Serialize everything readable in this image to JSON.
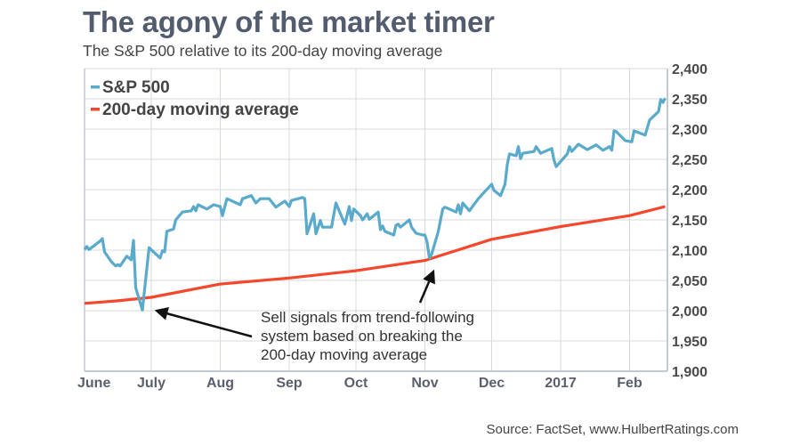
{
  "chart_data": {
    "type": "line",
    "title": "The agony of the market timer",
    "subtitle": "The S&P 500 relative to its 200-day moving average",
    "source": "Source: FactSet, www.HulbertRatings.com",
    "xlabel": "",
    "ylabel": "",
    "ylim": [
      1900,
      2400
    ],
    "yticks": [
      "2,400",
      "2,350",
      "2,300",
      "2,250",
      "2,200",
      "2,150",
      "2,100",
      "2,050",
      "2,000",
      "1,950",
      "1,900"
    ],
    "ytick_values": [
      2400,
      2350,
      2300,
      2250,
      2200,
      2150,
      2100,
      2050,
      2000,
      1950,
      1900
    ],
    "y_axis_side": "right",
    "xlim": [
      "2016-06-01",
      "2017-02-17"
    ],
    "xticks": [
      {
        "label": "June",
        "date": "2016-06-01"
      },
      {
        "label": "July",
        "date": "2016-07-01"
      },
      {
        "label": "Aug",
        "date": "2016-08-01"
      },
      {
        "label": "Sep",
        "date": "2016-09-01"
      },
      {
        "label": "Oct",
        "date": "2016-10-01"
      },
      {
        "label": "Nov",
        "date": "2016-11-01"
      },
      {
        "label": "Dec",
        "date": "2016-12-01"
      },
      {
        "label": "2017",
        "date": "2017-01-01"
      },
      {
        "label": "Feb",
        "date": "2017-02-01"
      }
    ],
    "grid": true,
    "legend_position": "top-left",
    "series": [
      {
        "name": "S&P 500",
        "color": "#5aaacb",
        "points": [
          [
            "2016-06-01",
            2101
          ],
          [
            "2016-06-02",
            2106
          ],
          [
            "2016-06-03",
            2101
          ],
          [
            "2016-06-08",
            2115
          ],
          [
            "2016-06-09",
            2119
          ],
          [
            "2016-06-10",
            2097
          ],
          [
            "2016-06-13",
            2081
          ],
          [
            "2016-06-15",
            2074
          ],
          [
            "2016-06-16",
            2076
          ],
          [
            "2016-06-17",
            2074
          ],
          [
            "2016-06-20",
            2090
          ],
          [
            "2016-06-22",
            2084
          ],
          [
            "2016-06-23",
            2116
          ],
          [
            "2016-06-24",
            2038
          ],
          [
            "2016-06-27",
            2001
          ],
          [
            "2016-06-30",
            2104
          ],
          [
            "2016-07-05",
            2087
          ],
          [
            "2016-07-06",
            2099
          ],
          [
            "2016-07-07",
            2097
          ],
          [
            "2016-07-08",
            2131
          ],
          [
            "2016-07-11",
            2135
          ],
          [
            "2016-07-12",
            2150
          ],
          [
            "2016-07-15",
            2163
          ],
          [
            "2016-07-19",
            2165
          ],
          [
            "2016-07-20",
            2172
          ],
          [
            "2016-07-21",
            2165
          ],
          [
            "2016-07-22",
            2175
          ],
          [
            "2016-07-26",
            2168
          ],
          [
            "2016-07-29",
            2175
          ],
          [
            "2016-08-01",
            2172
          ],
          [
            "2016-08-02",
            2157
          ],
          [
            "2016-08-04",
            2185
          ],
          [
            "2016-08-10",
            2175
          ],
          [
            "2016-08-11",
            2185
          ],
          [
            "2016-08-15",
            2190
          ],
          [
            "2016-08-17",
            2178
          ],
          [
            "2016-08-19",
            2185
          ],
          [
            "2016-08-23",
            2185
          ],
          [
            "2016-08-26",
            2171
          ],
          [
            "2016-08-30",
            2181
          ],
          [
            "2016-09-01",
            2172
          ],
          [
            "2016-09-02",
            2182
          ],
          [
            "2016-09-07",
            2187
          ],
          [
            "2016-09-08",
            2185
          ],
          [
            "2016-09-09",
            2127
          ],
          [
            "2016-09-12",
            2160
          ],
          [
            "2016-09-13",
            2127
          ],
          [
            "2016-09-15",
            2149
          ],
          [
            "2016-09-16",
            2138
          ],
          [
            "2016-09-20",
            2138
          ],
          [
            "2016-09-22",
            2178
          ],
          [
            "2016-09-26",
            2143
          ],
          [
            "2016-09-28",
            2172
          ],
          [
            "2016-09-29",
            2149
          ],
          [
            "2016-09-30",
            2168
          ],
          [
            "2016-10-03",
            2157
          ],
          [
            "2016-10-04",
            2150
          ],
          [
            "2016-10-06",
            2160
          ],
          [
            "2016-10-07",
            2151
          ],
          [
            "2016-10-10",
            2160
          ],
          [
            "2016-10-11",
            2163
          ],
          [
            "2016-10-12",
            2134
          ],
          [
            "2016-10-13",
            2140
          ],
          [
            "2016-10-14",
            2131
          ],
          [
            "2016-10-18",
            2125
          ],
          [
            "2016-10-19",
            2141
          ],
          [
            "2016-10-20",
            2143
          ],
          [
            "2016-10-21",
            2138
          ],
          [
            "2016-10-25",
            2150
          ],
          [
            "2016-10-26",
            2138
          ],
          [
            "2016-10-28",
            2128
          ],
          [
            "2016-10-31",
            2125
          ],
          [
            "2016-11-01",
            2125
          ],
          [
            "2016-11-02",
            2113
          ],
          [
            "2016-11-03",
            2087
          ],
          [
            "2016-11-04",
            2093
          ],
          [
            "2016-11-07",
            2131
          ],
          [
            "2016-11-09",
            2168
          ],
          [
            "2016-11-10",
            2171
          ],
          [
            "2016-11-15",
            2163
          ],
          [
            "2016-11-16",
            2175
          ],
          [
            "2016-11-17",
            2160
          ],
          [
            "2016-11-18",
            2178
          ],
          [
            "2016-11-21",
            2165
          ],
          [
            "2016-11-25",
            2185
          ],
          [
            "2016-11-29",
            2201
          ],
          [
            "2016-12-01",
            2209
          ],
          [
            "2016-12-02",
            2199
          ],
          [
            "2016-12-05",
            2190
          ],
          [
            "2016-12-07",
            2209
          ],
          [
            "2016-12-08",
            2241
          ],
          [
            "2016-12-09",
            2259
          ],
          [
            "2016-12-12",
            2256
          ],
          [
            "2016-12-13",
            2271
          ],
          [
            "2016-12-14",
            2251
          ],
          [
            "2016-12-15",
            2260
          ],
          [
            "2016-12-20",
            2263
          ],
          [
            "2016-12-21",
            2271
          ],
          [
            "2016-12-23",
            2260
          ],
          [
            "2016-12-28",
            2268
          ],
          [
            "2016-12-29",
            2249
          ],
          [
            "2016-12-30",
            2238
          ],
          [
            "2017-01-04",
            2259
          ],
          [
            "2017-01-05",
            2271
          ],
          [
            "2017-01-06",
            2263
          ],
          [
            "2017-01-09",
            2275
          ],
          [
            "2017-01-13",
            2266
          ],
          [
            "2017-01-17",
            2274
          ],
          [
            "2017-01-19",
            2268
          ],
          [
            "2017-01-20",
            2265
          ],
          [
            "2017-01-23",
            2271
          ],
          [
            "2017-01-24",
            2265
          ],
          [
            "2017-01-25",
            2297
          ],
          [
            "2017-01-26",
            2296
          ],
          [
            "2017-01-30",
            2281
          ],
          [
            "2017-02-02",
            2279
          ],
          [
            "2017-02-03",
            2297
          ],
          [
            "2017-02-08",
            2290
          ],
          [
            "2017-02-10",
            2315
          ],
          [
            "2017-02-14",
            2329
          ],
          [
            "2017-02-15",
            2349
          ],
          [
            "2017-02-16",
            2344
          ],
          [
            "2017-02-17",
            2351
          ]
        ]
      },
      {
        "name": "200-day moving average",
        "color": "#f4472c",
        "points": [
          [
            "2016-06-01",
            2012
          ],
          [
            "2016-06-15",
            2016
          ],
          [
            "2016-07-01",
            2022
          ],
          [
            "2016-08-01",
            2044
          ],
          [
            "2016-09-01",
            2054
          ],
          [
            "2016-10-01",
            2066
          ],
          [
            "2016-11-01",
            2083
          ],
          [
            "2016-12-01",
            2118
          ],
          [
            "2017-01-01",
            2139
          ],
          [
            "2017-02-01",
            2157
          ],
          [
            "2017-02-17",
            2172
          ]
        ]
      }
    ],
    "annotations": [
      {
        "text_lines": [
          "Sell signals from trend-following",
          "system based on breaking the",
          "200-day moving average"
        ],
        "arrows_to": [
          {
            "date": "2016-06-27",
            "value": 2001
          },
          {
            "date": "2016-11-03",
            "value": 2087
          }
        ]
      }
    ]
  }
}
